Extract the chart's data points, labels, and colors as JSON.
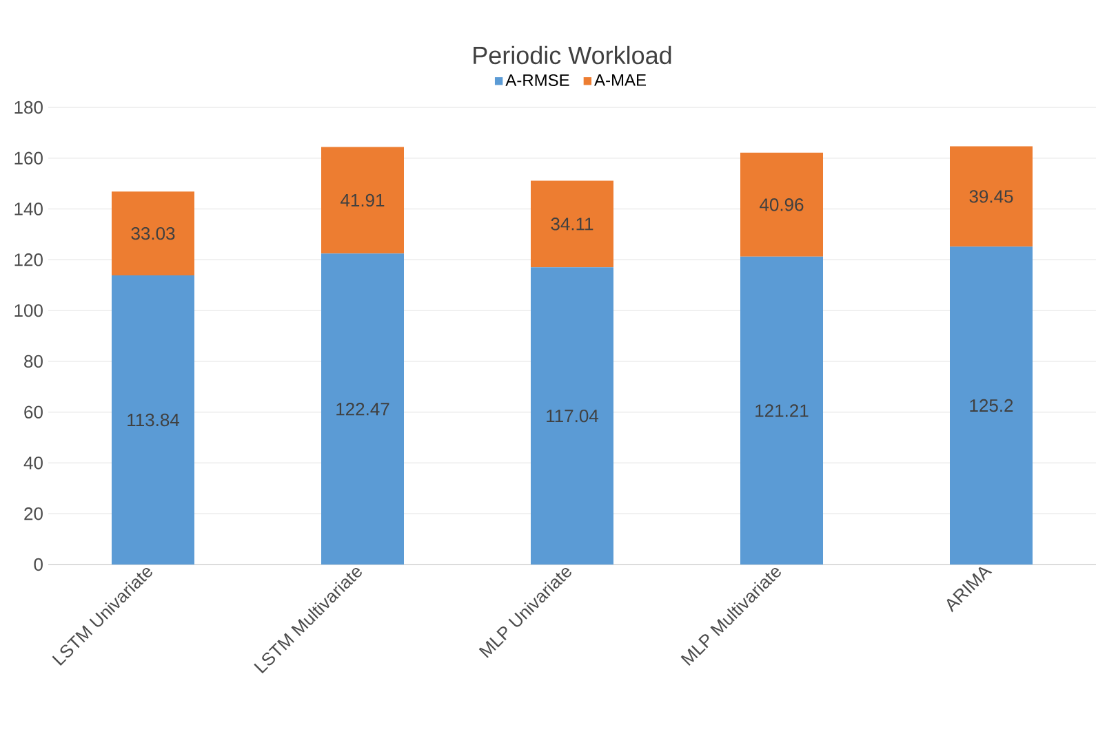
{
  "chart_data": {
    "type": "bar",
    "title": "Periodic Workload",
    "stacked": true,
    "categories": [
      "LSTM Univariate",
      "LSTM Multivariate",
      "MLP Univariate",
      "MLP Multivariate",
      "ARIMA"
    ],
    "series": [
      {
        "name": "A-RMSE",
        "color": "#5b9bd5",
        "values": [
          113.84,
          122.47,
          117.04,
          121.21,
          125.2
        ]
      },
      {
        "name": "A-MAE",
        "color": "#ed7d31",
        "values": [
          33.03,
          41.91,
          34.11,
          40.96,
          39.45
        ]
      }
    ],
    "ylim": [
      0,
      180
    ],
    "yticks": [
      0,
      20,
      40,
      60,
      80,
      100,
      120,
      140,
      160,
      180
    ],
    "grid": "y",
    "legend": "top",
    "data_labels": true
  }
}
